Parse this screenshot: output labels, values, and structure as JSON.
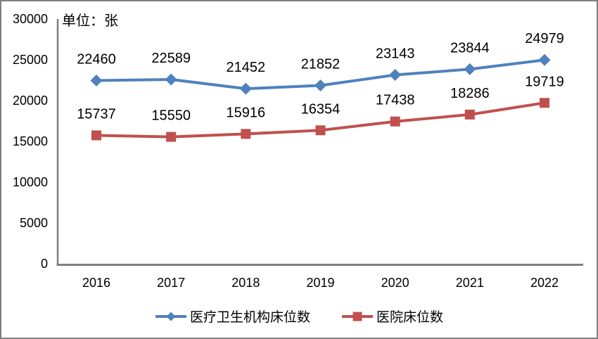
{
  "frame": {
    "background": "#FFFFFF",
    "border_color": "#808080"
  },
  "axis_color": "#808080",
  "text_color": "#000000",
  "chart_data": {
    "type": "line",
    "title": "",
    "unit_label": "单位：张",
    "categories": [
      "2016",
      "2017",
      "2018",
      "2019",
      "2020",
      "2021",
      "2022"
    ],
    "series": [
      {
        "name": "医疗卫生机构床位数",
        "color": "#4F81BD",
        "marker": "diamond",
        "values": [
          22460,
          22589,
          21452,
          21852,
          23143,
          23844,
          24979
        ]
      },
      {
        "name": "医院床位数",
        "color": "#C0504D",
        "marker": "square",
        "values": [
          15737,
          15550,
          15916,
          16354,
          17438,
          18286,
          19719
        ]
      }
    ],
    "ylim": [
      0,
      30000
    ],
    "yticks": [
      0,
      5000,
      10000,
      15000,
      20000,
      25000,
      30000
    ],
    "grid": false,
    "data_labels": true,
    "legend_position": "bottom"
  }
}
